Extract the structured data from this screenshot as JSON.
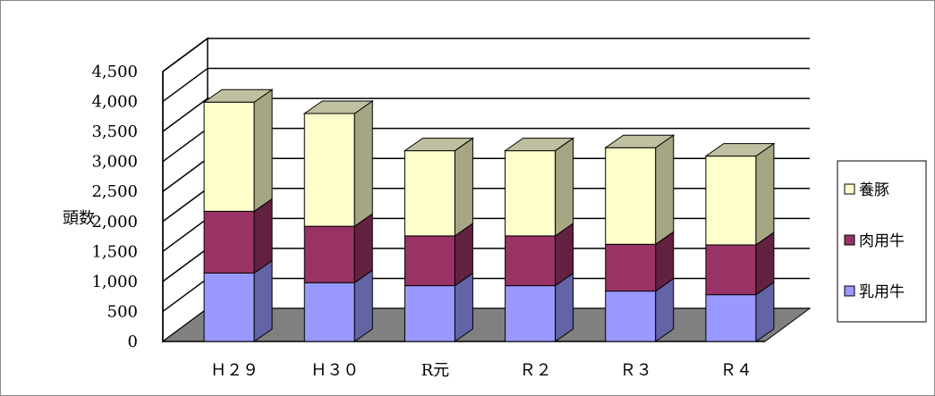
{
  "chart_data": {
    "type": "bar",
    "stacked": true,
    "three_d": true,
    "categories": [
      "Ｈ２９",
      "Ｈ３０",
      "R元",
      "Ｒ２",
      "Ｒ３",
      "Ｒ４"
    ],
    "series": [
      {
        "name": "乳用牛",
        "values": [
          1140,
          980,
          930,
          930,
          840,
          780
        ],
        "color": "#9999ff"
      },
      {
        "name": "肉用牛",
        "values": [
          1030,
          940,
          830,
          830,
          780,
          830
        ],
        "color": "#993366"
      },
      {
        "name": "養豚",
        "values": [
          1820,
          1880,
          1420,
          1420,
          1610,
          1480
        ],
        "color": "#ffffcc"
      }
    ],
    "ylabel": "頭数",
    "ylim": [
      0,
      4500
    ],
    "yticks": [
      0,
      500,
      1000,
      1500,
      2000,
      2500,
      3000,
      3500,
      4000,
      4500
    ],
    "ytick_labels": [
      "0",
      "500",
      "1,000",
      "1,500",
      "2,000",
      "2,500",
      "3,000",
      "3,500",
      "4,000",
      "4,500"
    ],
    "grid": true,
    "legend_position": "right",
    "legend_order": [
      "養豚",
      "肉用牛",
      "乳用牛"
    ],
    "floor_color": "#808080",
    "top_color": "#c0c0a0"
  }
}
